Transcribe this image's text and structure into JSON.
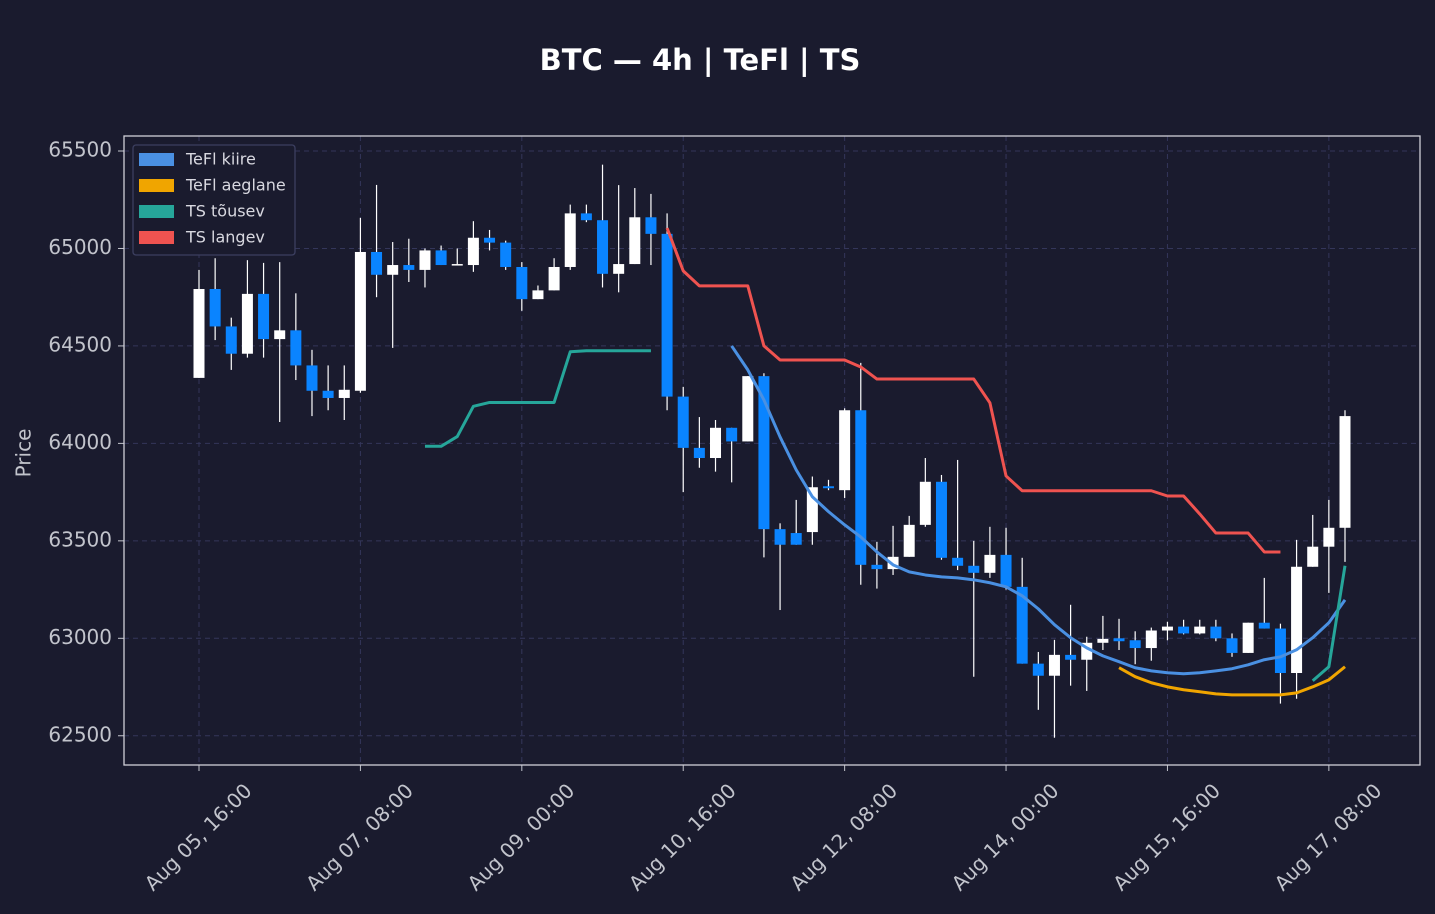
{
  "chart_data": {
    "type": "candlestick",
    "title": "BTC — 4h  |  TeFl  |  TS",
    "ylabel": "Price",
    "categories": [
      "Aug 05, 16:00",
      null,
      null,
      null,
      null,
      null,
      null,
      null,
      null,
      null,
      "Aug 07, 08:00",
      null,
      null,
      null,
      null,
      null,
      null,
      null,
      null,
      null,
      "Aug 09, 00:00",
      null,
      null,
      null,
      null,
      null,
      null,
      null,
      null,
      null,
      "Aug 10, 16:00",
      null,
      null,
      null,
      null,
      null,
      null,
      null,
      null,
      null,
      "Aug 12, 08:00",
      null,
      null,
      null,
      null,
      null,
      null,
      null,
      null,
      null,
      "Aug 14, 00:00",
      null,
      null,
      null,
      null,
      null,
      null,
      null,
      null,
      null,
      "Aug 15, 16:00",
      null,
      null,
      null,
      null,
      null,
      null,
      null,
      null,
      null,
      "Aug 17, 08:00",
      null
    ],
    "open": [
      64336,
      64792,
      64600,
      64460,
      64767,
      64535,
      64580,
      64400,
      64270,
      64233,
      64270,
      64982,
      64865,
      64915,
      64890,
      64990,
      64915,
      64915,
      65055,
      65030,
      64905,
      64740,
      64785,
      64905,
      65180,
      65145,
      64870,
      64920,
      65160,
      65075,
      64240,
      63977,
      63925,
      64080,
      64010,
      64345,
      63560,
      63540,
      63545,
      63780,
      63760,
      64170,
      63377,
      63355,
      63418,
      63582,
      63803,
      63413,
      63372,
      63336,
      63428,
      63264,
      62870,
      62808,
      62915,
      62890,
      62977,
      63000,
      62990,
      62950,
      63040,
      63060,
      63025,
      63060,
      63000,
      62925,
      63080,
      63050,
      62822,
      63367,
      63470,
      63567
    ],
    "high": [
      64890,
      64950,
      64645,
      64940,
      64926,
      64930,
      64770,
      64480,
      64400,
      64400,
      65157,
      65326,
      65033,
      65050,
      65000,
      65015,
      65000,
      65140,
      65095,
      65040,
      64930,
      64810,
      64950,
      65225,
      65225,
      65430,
      65325,
      65310,
      65280,
      65180,
      64290,
      64135,
      64120,
      64080,
      64345,
      64360,
      63590,
      63710,
      63830,
      63813,
      64180,
      64413,
      63495,
      63577,
      63628,
      63925,
      63838,
      63915,
      63500,
      63572,
      63567,
      63413,
      62930,
      62992,
      63172,
      63008,
      63115,
      63100,
      63036,
      63055,
      63085,
      63095,
      63095,
      63095,
      63025,
      63080,
      63310,
      63075,
      63505,
      63633,
      63710,
      64170
    ],
    "low": [
      64336,
      64530,
      64377,
      64440,
      64440,
      64110,
      64325,
      64140,
      64170,
      64120,
      64260,
      64750,
      64490,
      64828,
      64800,
      64915,
      64915,
      64880,
      64990,
      64890,
      64680,
      64740,
      64785,
      64890,
      65135,
      64800,
      64775,
      64920,
      64915,
      64170,
      63750,
      63875,
      63855,
      63800,
      64010,
      63415,
      63145,
      63480,
      63480,
      63760,
      63720,
      63275,
      63255,
      63325,
      63418,
      63572,
      63403,
      63350,
      62803,
      63310,
      63250,
      62870,
      62633,
      62490,
      62757,
      62730,
      62940,
      62940,
      62867,
      62885,
      62990,
      63020,
      63020,
      62985,
      62905,
      62925,
      63050,
      62665,
      62690,
      63367,
      63233,
      63392
    ],
    "close": [
      64792,
      64600,
      64460,
      64767,
      64535,
      64580,
      64400,
      64270,
      64233,
      64275,
      64982,
      64865,
      64915,
      64890,
      64990,
      64915,
      64920,
      65055,
      65030,
      64905,
      64740,
      64785,
      64905,
      65180,
      65145,
      64870,
      64920,
      65160,
      65075,
      64240,
      63977,
      63925,
      64080,
      64010,
      64345,
      63560,
      63480,
      63480,
      63775,
      63770,
      64170,
      63377,
      63355,
      63418,
      63582,
      63803,
      63413,
      63372,
      63336,
      63428,
      63264,
      62870,
      62808,
      62915,
      62890,
      62977,
      62997,
      62985,
      62950,
      63040,
      63060,
      63025,
      63060,
      63000,
      62925,
      63080,
      63050,
      62822,
      63367,
      63470,
      63567,
      64140
    ],
    "up_color": "#ffffff",
    "down_color": "#0a84ff",
    "wick_color": "#ffffff",
    "series": [
      {
        "name": "TeFl kiire",
        "color": "#4a90e2",
        "values": [
          null,
          null,
          null,
          null,
          null,
          null,
          null,
          null,
          null,
          null,
          null,
          null,
          null,
          null,
          null,
          null,
          null,
          null,
          null,
          null,
          null,
          null,
          null,
          null,
          null,
          null,
          null,
          null,
          null,
          null,
          null,
          null,
          null,
          64500,
          64377,
          64223,
          64033,
          63864,
          63726,
          63650,
          63582,
          63520,
          63443,
          63377,
          63341,
          63325,
          63315,
          63310,
          63300,
          63285,
          63264,
          63218,
          63151,
          63070,
          63003,
          62951,
          62910,
          62880,
          62849,
          62833,
          62823,
          62818,
          62823,
          62833,
          62844,
          62864,
          62890,
          62905,
          62941,
          63003,
          63080,
          63197
        ]
      },
      {
        "name": "TeFl aeglane",
        "color": "#f0a500",
        "values": [
          null,
          null,
          null,
          null,
          null,
          null,
          null,
          null,
          null,
          null,
          null,
          null,
          null,
          null,
          null,
          null,
          null,
          null,
          null,
          null,
          null,
          null,
          null,
          null,
          null,
          null,
          null,
          null,
          null,
          null,
          null,
          null,
          null,
          null,
          null,
          null,
          null,
          null,
          null,
          null,
          null,
          null,
          null,
          null,
          null,
          null,
          null,
          null,
          null,
          null,
          null,
          null,
          null,
          null,
          null,
          null,
          null,
          62849,
          62803,
          62772,
          62751,
          62736,
          62726,
          62715,
          62710,
          62710,
          62710,
          62710,
          62720,
          62751,
          62787,
          62854
        ]
      },
      {
        "name": "TS tõusev",
        "color": "#26a69a",
        "values": [
          null,
          null,
          null,
          null,
          null,
          null,
          null,
          null,
          null,
          null,
          null,
          null,
          null,
          null,
          63985,
          63985,
          64035,
          64190,
          64210,
          64210,
          64210,
          64210,
          64210,
          64470,
          64475,
          64475,
          64475,
          64475,
          64475,
          null,
          null,
          null,
          null,
          null,
          null,
          null,
          null,
          null,
          null,
          null,
          null,
          null,
          null,
          null,
          null,
          null,
          null,
          null,
          null,
          null,
          null,
          null,
          null,
          null,
          null,
          null,
          null,
          null,
          null,
          null,
          null,
          null,
          null,
          null,
          null,
          null,
          null,
          null,
          null,
          62782,
          62854,
          63372
        ]
      },
      {
        "name": "TS langev",
        "color": "#ef5350",
        "values": [
          null,
          null,
          null,
          null,
          null,
          null,
          null,
          null,
          null,
          null,
          null,
          null,
          null,
          null,
          null,
          null,
          null,
          null,
          null,
          null,
          null,
          null,
          null,
          null,
          null,
          null,
          null,
          null,
          null,
          65105,
          64885,
          64808,
          64808,
          64808,
          64808,
          64500,
          64428,
          64428,
          64428,
          64428,
          64428,
          64392,
          64330,
          64330,
          64330,
          64330,
          64330,
          64330,
          64330,
          64208,
          63833,
          63757,
          63757,
          63757,
          63757,
          63757,
          63757,
          63757,
          63757,
          63757,
          63730,
          63730,
          63638,
          63540,
          63540,
          63540,
          63443,
          63443,
          null,
          null,
          null,
          null
        ]
      }
    ],
    "ylim": [
      62350,
      65577
    ],
    "yticks": [
      62500,
      63000,
      63500,
      64000,
      64500,
      65000,
      65500
    ],
    "grid": true,
    "legend": "upper left"
  }
}
